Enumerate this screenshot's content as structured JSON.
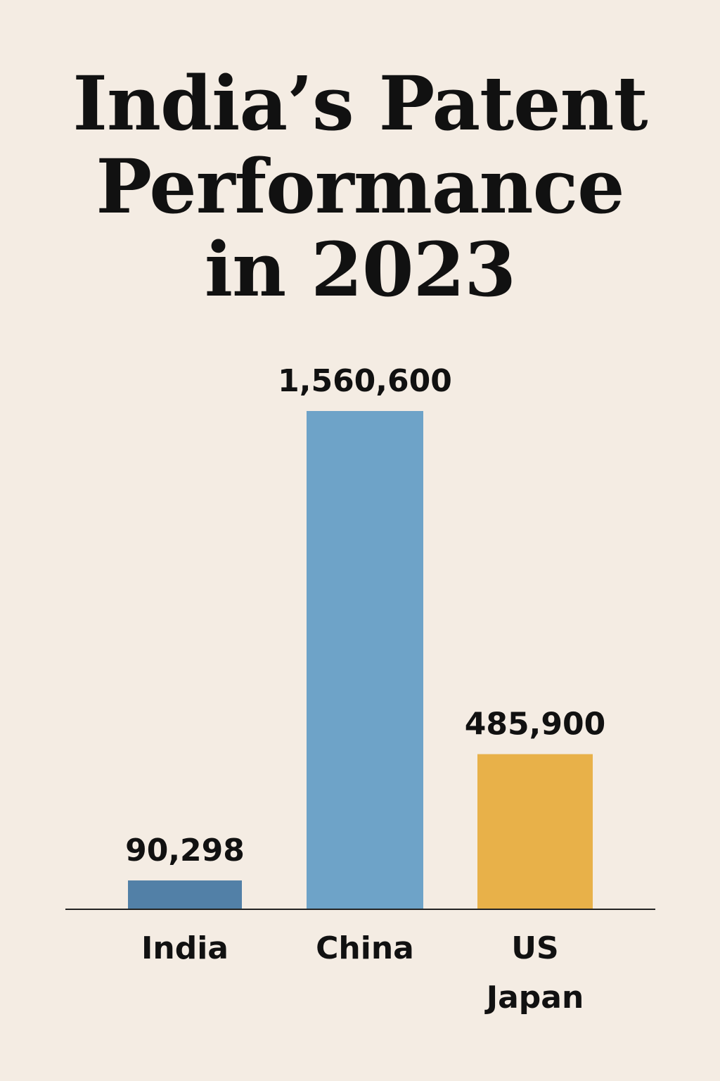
{
  "chart_data": {
    "type": "bar",
    "title": "India’s Patent Performance in 2023",
    "title_lines": [
      "India’s Patent",
      "Performance",
      "in 2023"
    ],
    "categories": [
      [
        "India"
      ],
      [
        "China"
      ],
      [
        "US",
        "Japan"
      ]
    ],
    "values": [
      90298,
      1560600,
      485900
    ],
    "value_labels": [
      "90,298",
      "1,560,600",
      "485,900"
    ],
    "colors": [
      "#5280a7",
      "#6ea3c8",
      "#e8b149"
    ],
    "ylim": [
      0,
      1560600
    ],
    "grid": false,
    "legend": false,
    "axis_color": "#222222"
  }
}
